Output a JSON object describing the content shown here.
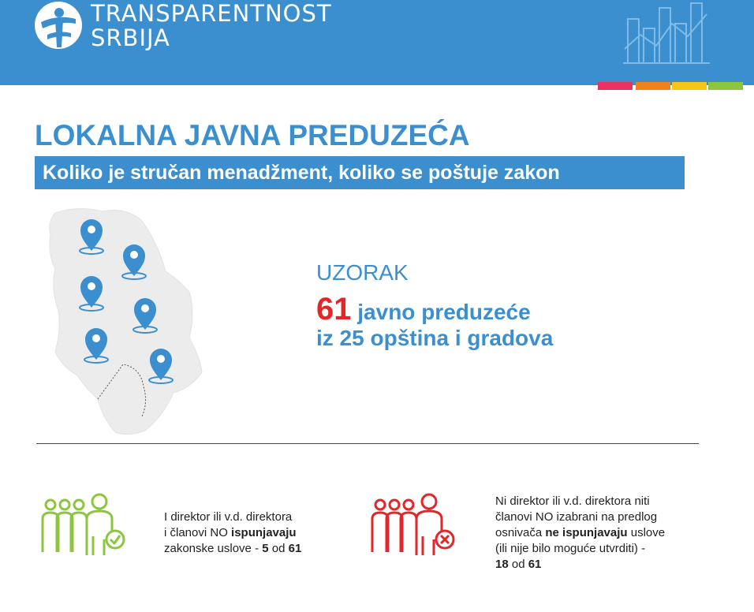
{
  "header": {
    "brand_line1": "TRANSPARENTNOST",
    "brand_line2": "SRBIJA",
    "background_color": "#3b8fcf",
    "accent_colors": [
      "#e8345e",
      "#f0821e",
      "#f5c61a",
      "#8cc63f"
    ]
  },
  "title": "LOKALNA JAVNA PREDUZEĆA",
  "subtitle": "Koliko je stručan menadžment, koliko se poštuje zakon",
  "map": {
    "icon": "serbia-map-with-location-pins",
    "pin_count": 6
  },
  "sample": {
    "label": "UZORAK",
    "count": "61",
    "line1_rest": " javno preduzeće",
    "line2": "iz 25 opština i gradova"
  },
  "stats": [
    {
      "icon": "people-check-icon",
      "color": "#8cc63f",
      "line1": "I direktor ili v.d. direktora",
      "line2_pre": "i članovi NO ",
      "line2_bold": "ispunjavaju",
      "line3_pre": "zakonske uslove - ",
      "num": "5",
      "sep": " od ",
      "total": "61"
    },
    {
      "icon": "people-x-icon",
      "color": "#e52629",
      "line1": "Ni direktor ili v.d. direktora niti",
      "line2": "članovi NO izabrani na predlog",
      "line3_pre": "osnivača ",
      "line3_bold": "ne ispunjavaju",
      "line3_post": " uslove",
      "line4": "(ili nije bilo moguće utvrditi) -",
      "num": "18",
      "sep": " od ",
      "total": "61"
    }
  ]
}
